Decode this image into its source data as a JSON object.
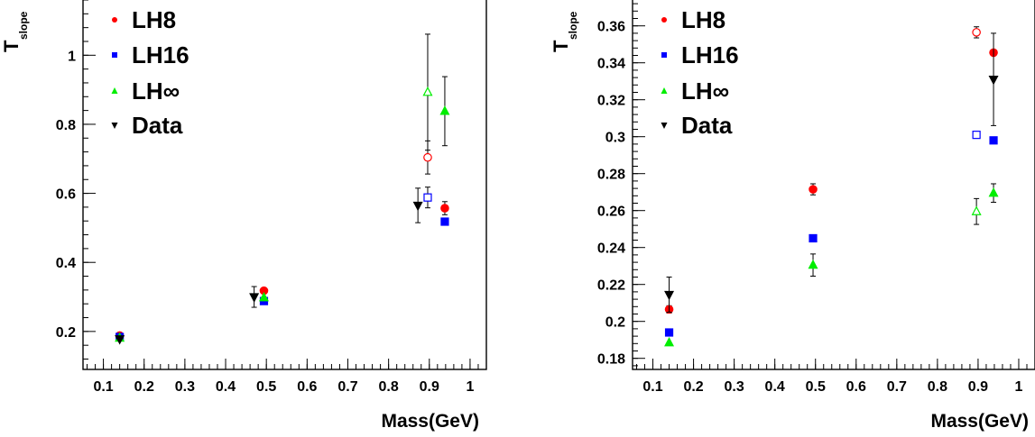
{
  "colors": {
    "LH8": "#ff0000",
    "LH16": "#0000ff",
    "LHinf": "#00ee00",
    "Data": "#000000"
  },
  "chart_data": [
    {
      "type": "scatter",
      "title": "",
      "xlabel": "Mass(GeV)",
      "ylabel": "T",
      "ylabel_sub": "slope",
      "xlim": [
        0.05,
        1.04
      ],
      "ylim": [
        0.09,
        1.16
      ],
      "x_ticks": [
        0.1,
        0.2,
        0.3,
        0.4,
        0.5,
        0.6,
        0.7,
        0.8,
        0.9,
        1.0
      ],
      "x_tick_labels": [
        "0.1",
        "0.2",
        "0.3",
        "0.4",
        "0.5",
        "0.6",
        "0.7",
        "0.8",
        "0.9",
        "1"
      ],
      "y_ticks": [
        0.2,
        0.4,
        0.6,
        0.8,
        1.0
      ],
      "y_tick_labels": [
        "0.2",
        "0.4",
        "0.6",
        "0.8",
        "1"
      ],
      "grid": false,
      "legend_placement": "top-left",
      "series": [
        {
          "name": "LH8",
          "marker": "circle",
          "points": [
            {
              "x": 0.14,
              "y": 0.188,
              "err": 0,
              "open": false
            },
            {
              "x": 0.494,
              "y": 0.318,
              "err": 0,
              "open": false
            },
            {
              "x": 0.896,
              "y": 0.704,
              "err": 0.048,
              "open": true
            },
            {
              "x": 0.938,
              "y": 0.557,
              "err": 0.019,
              "open": false
            }
          ]
        },
        {
          "name": "LH16",
          "marker": "square",
          "points": [
            {
              "x": 0.14,
              "y": 0.184,
              "err": 0,
              "open": false
            },
            {
              "x": 0.494,
              "y": 0.288,
              "err": 0,
              "open": false
            },
            {
              "x": 0.896,
              "y": 0.588,
              "err": 0.03,
              "open": true
            },
            {
              "x": 0.938,
              "y": 0.518,
              "err": 0,
              "open": false
            }
          ]
        },
        {
          "name": "LH∞",
          "marker": "triangle-up",
          "points": [
            {
              "x": 0.14,
              "y": 0.181,
              "err": 0,
              "open": false
            },
            {
              "x": 0.494,
              "y": 0.298,
              "err": 0,
              "open": false
            },
            {
              "x": 0.896,
              "y": 0.893,
              "err": 0.168,
              "open": true
            },
            {
              "x": 0.938,
              "y": 0.838,
              "err": 0.1,
              "open": false
            }
          ]
        },
        {
          "name": "Data",
          "marker": "triangle-down",
          "points": [
            {
              "x": 0.14,
              "y": 0.178,
              "err": 0,
              "open": false
            },
            {
              "x": 0.47,
              "y": 0.3,
              "err": 0.03,
              "open": false
            },
            {
              "x": 0.872,
              "y": 0.565,
              "err": 0.05,
              "open": false
            }
          ]
        }
      ]
    },
    {
      "type": "scatter",
      "title": "",
      "xlabel": "Mass(GeV)",
      "ylabel": "T",
      "ylabel_sub": "slope",
      "xlim": [
        0.05,
        1.04
      ],
      "ylim": [
        0.174,
        0.374
      ],
      "x_ticks": [
        0.1,
        0.2,
        0.3,
        0.4,
        0.5,
        0.6,
        0.7,
        0.8,
        0.9,
        1.0
      ],
      "x_tick_labels": [
        "0.1",
        "0.2",
        "0.3",
        "0.4",
        "0.5",
        "0.6",
        "0.7",
        "0.8",
        "0.9",
        "1"
      ],
      "y_ticks": [
        0.18,
        0.2,
        0.22,
        0.24,
        0.26,
        0.28,
        0.3,
        0.32,
        0.34,
        0.36
      ],
      "y_tick_labels": [
        "0.18",
        "0.2",
        "0.22",
        "0.24",
        "0.26",
        "0.28",
        "0.3",
        "0.32",
        "0.34",
        "0.36"
      ],
      "grid": false,
      "legend_placement": "top-left",
      "series": [
        {
          "name": "LH8",
          "marker": "circle",
          "points": [
            {
              "x": 0.14,
              "y": 0.2065,
              "err": 0.002,
              "open": false
            },
            {
              "x": 0.494,
              "y": 0.2715,
              "err": 0.003,
              "open": false
            },
            {
              "x": 0.896,
              "y": 0.3565,
              "err": 0.003,
              "open": true
            },
            {
              "x": 0.938,
              "y": 0.3455,
              "err": 0,
              "open": false
            }
          ]
        },
        {
          "name": "LH16",
          "marker": "square",
          "points": [
            {
              "x": 0.14,
              "y": 0.194,
              "err": 0,
              "open": false
            },
            {
              "x": 0.494,
              "y": 0.245,
              "err": 0,
              "open": false
            },
            {
              "x": 0.896,
              "y": 0.301,
              "err": 0,
              "open": true
            },
            {
              "x": 0.938,
              "y": 0.298,
              "err": 0,
              "open": false
            }
          ]
        },
        {
          "name": "LH∞",
          "marker": "triangle-up",
          "points": [
            {
              "x": 0.14,
              "y": 0.1885,
              "err": 0,
              "open": false
            },
            {
              "x": 0.494,
              "y": 0.2305,
              "err": 0.006,
              "open": false
            },
            {
              "x": 0.896,
              "y": 0.2595,
              "err": 0.007,
              "open": true
            },
            {
              "x": 0.938,
              "y": 0.2695,
              "err": 0.005,
              "open": false
            }
          ]
        },
        {
          "name": "Data",
          "marker": "triangle-down",
          "points": [
            {
              "x": 0.14,
              "y": 0.2145,
              "err": 0.0095,
              "open": false
            },
            {
              "x": 0.938,
              "y": 0.331,
              "err": 0.025,
              "open": false
            }
          ]
        }
      ]
    }
  ]
}
